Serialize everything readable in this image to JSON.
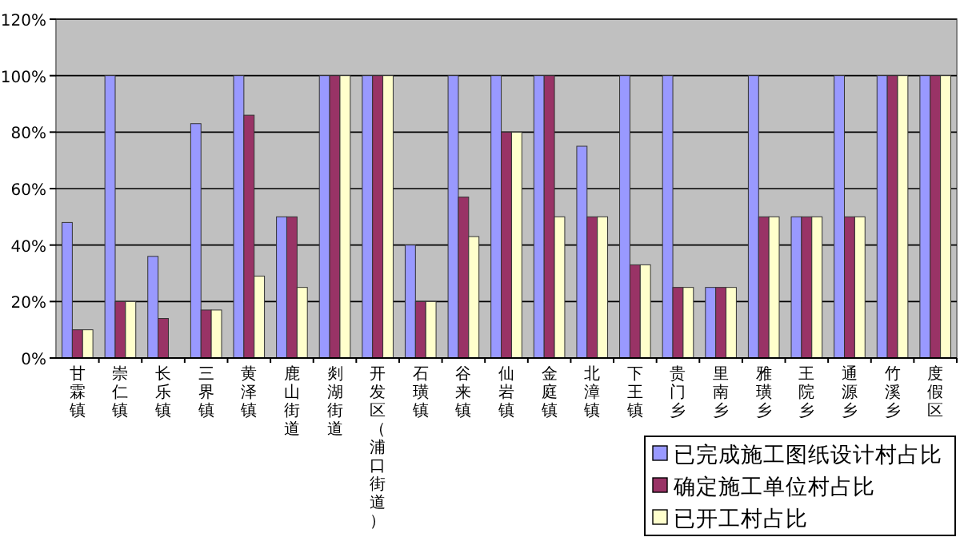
{
  "chart_data": {
    "type": "bar",
    "categories": [
      "甘霖镇",
      "崇仁镇",
      "长乐镇",
      "三界镇",
      "黄泽镇",
      "鹿山街道",
      "剡湖街道",
      "开发区（浦口街道）",
      "石璜镇",
      "谷来镇",
      "仙岩镇",
      "金庭镇",
      "北漳镇",
      "下王镇",
      "贵门乡",
      "里南乡",
      "雅璜乡",
      "王院乡",
      "通源乡",
      "竹溪乡",
      "度假区"
    ],
    "series": [
      {
        "name": "已完成施工图纸设计村占比",
        "color": "#9999ff",
        "values": [
          48,
          100,
          36,
          83,
          100,
          50,
          100,
          100,
          40,
          100,
          100,
          100,
          75,
          100,
          100,
          25,
          100,
          50,
          100,
          100,
          100
        ]
      },
      {
        "name": "确定施工单位村占比",
        "color": "#993366",
        "values": [
          10,
          20,
          14,
          17,
          86,
          50,
          100,
          100,
          20,
          57,
          80,
          100,
          50,
          33,
          25,
          25,
          50,
          50,
          50,
          100,
          100
        ]
      },
      {
        "name": "已开工村占比",
        "color": "#ffffcc",
        "values": [
          10,
          20,
          0,
          17,
          29,
          25,
          100,
          100,
          20,
          43,
          80,
          50,
          50,
          33,
          25,
          25,
          50,
          50,
          50,
          100,
          100
        ]
      }
    ],
    "ylim": [
      0,
      120
    ],
    "yticks": [
      {
        "value": 0,
        "label": "0%"
      },
      {
        "value": 20,
        "label": "20%"
      },
      {
        "value": 40,
        "label": "40%"
      },
      {
        "value": 60,
        "label": "60%"
      },
      {
        "value": 80,
        "label": "80%"
      },
      {
        "value": 100,
        "label": "100%"
      },
      {
        "value": 120,
        "label": "120%"
      }
    ],
    "grid": "y",
    "legend": "bottom right"
  }
}
